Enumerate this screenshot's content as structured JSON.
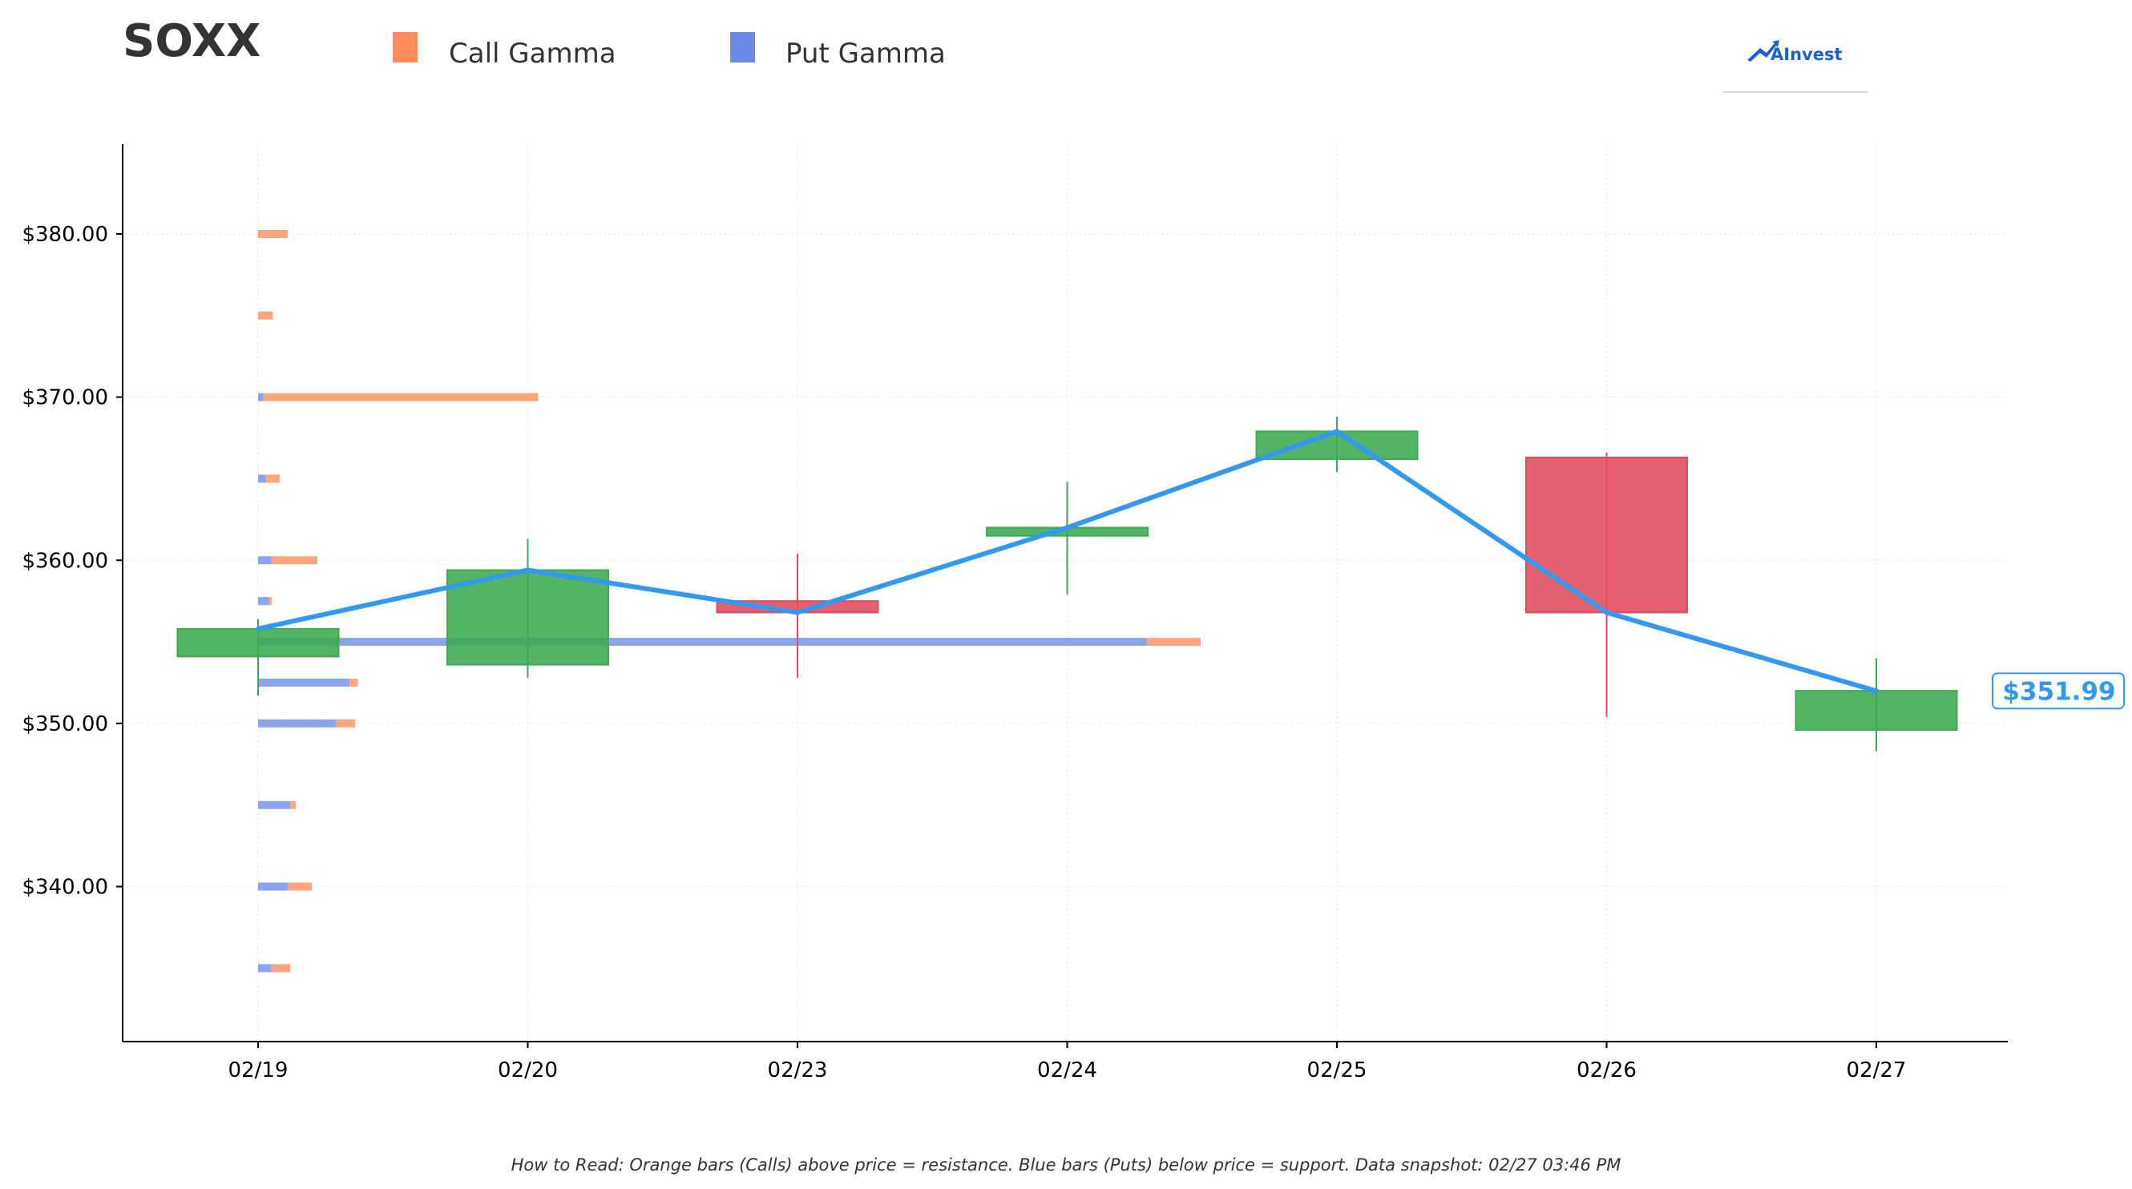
{
  "title": "SOXX",
  "legend": [
    {
      "name": "Call Gamma",
      "color": "#FF8C5A"
    },
    {
      "name": "Put Gamma",
      "color": "#6B8BE6"
    }
  ],
  "logo": {
    "text": "AInvest",
    "color": "#1A5FD8",
    "icon": "chart-arrow-icon"
  },
  "footnote": "How to Read: Orange bars (Calls) above price = resistance. Blue bars (Puts) below price = support. Data snapshot: 02/27 03:46 PM",
  "colors": {
    "up": "#3CAA50",
    "down": "#E04B5C",
    "price_line": "#3399F0",
    "call": "#FF8C5A",
    "put": "#6B8BE6"
  },
  "chart_data": {
    "type": "candlestick",
    "categories": [
      "02/19",
      "02/20",
      "02/23",
      "02/24",
      "02/25",
      "02/26",
      "02/27"
    ],
    "ylim": [
      330.5,
      385.5
    ],
    "yticks": [
      340,
      350,
      360,
      370,
      380
    ],
    "ytick_labels": [
      "$340.00",
      "$350.00",
      "$360.00",
      "$370.00",
      "$380.00"
    ],
    "grid": true,
    "candles": [
      {
        "date": "02/19",
        "open": 354.1,
        "close": 355.8,
        "high": 356.4,
        "low": 351.7
      },
      {
        "date": "02/20",
        "open": 353.6,
        "close": 359.4,
        "high": 361.3,
        "low": 352.8
      },
      {
        "date": "02/23",
        "open": 357.5,
        "close": 356.8,
        "high": 360.4,
        "low": 352.8
      },
      {
        "date": "02/24",
        "open": 361.5,
        "close": 362.0,
        "high": 364.8,
        "low": 357.9
      },
      {
        "date": "02/25",
        "open": 366.2,
        "close": 367.9,
        "high": 368.8,
        "low": 365.4
      },
      {
        "date": "02/26",
        "open": 366.3,
        "close": 356.8,
        "high": 366.6,
        "low": 350.4
      },
      {
        "date": "02/27",
        "open": 349.6,
        "close": 352.0,
        "high": 354.0,
        "low": 348.3
      }
    ],
    "price_line": [
      355.8,
      359.4,
      356.8,
      362.0,
      367.9,
      356.8,
      351.99
    ],
    "last_price": 351.99,
    "last_price_label": "$351.99",
    "gamma": [
      {
        "strike": 380,
        "put": 0.0,
        "call": 0.11
      },
      {
        "strike": 375,
        "put": 0.0,
        "call": 0.055
      },
      {
        "strike": 370,
        "put": 0.02,
        "call": 1.02
      },
      {
        "strike": 365,
        "put": 0.03,
        "call": 0.05
      },
      {
        "strike": 360,
        "put": 0.05,
        "call": 0.17
      },
      {
        "strike": 357.5,
        "put": 0.04,
        "call": 0.01
      },
      {
        "strike": 355,
        "put": 3.3,
        "call": 0.2
      },
      {
        "strike": 352.5,
        "put": 0.34,
        "call": 0.03
      },
      {
        "strike": 350,
        "put": 0.29,
        "call": 0.07
      },
      {
        "strike": 345,
        "put": 0.12,
        "call": 0.02
      },
      {
        "strike": 340,
        "put": 0.11,
        "call": 0.09
      },
      {
        "strike": 335,
        "put": 0.05,
        "call": 0.07
      }
    ]
  }
}
